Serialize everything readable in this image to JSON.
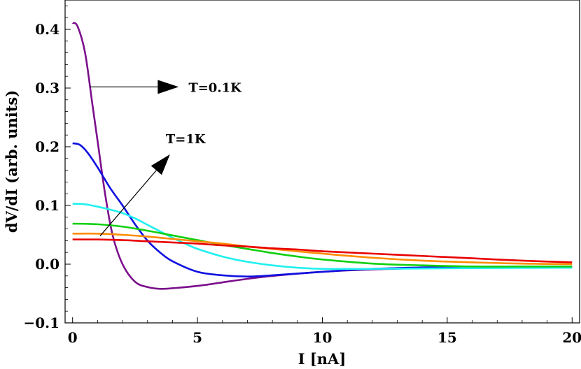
{
  "chart_data": {
    "type": "line",
    "xlabel": "I [nA]",
    "ylabel": "dV/dI (arb. units)",
    "xlim": [
      -0.3,
      20.3
    ],
    "ylim": [
      -0.1,
      0.45
    ],
    "x_ticks": [
      0,
      5,
      10,
      15,
      20
    ],
    "x_tick_labels": [
      "0",
      "5",
      "10",
      "15",
      "20"
    ],
    "y_ticks": [
      -0.1,
      0.0,
      0.1,
      0.2,
      0.3,
      0.4
    ],
    "y_tick_labels": [
      "−0.1",
      "0.0",
      "0.1",
      "0.2",
      "0.3",
      "0.4"
    ],
    "grid": false,
    "series": [
      {
        "color": "#7b0f8c",
        "x": [
          0,
          0.2,
          0.5,
          0.8,
          1.0,
          1.3,
          1.6,
          2.0,
          2.5,
          3.0,
          3.5,
          4.0,
          5.0,
          6.0,
          7.0,
          8.0,
          10.0,
          12.0,
          15.0,
          20.0
        ],
        "y": [
          0.411,
          0.405,
          0.36,
          0.27,
          0.21,
          0.12,
          0.05,
          0.0,
          -0.03,
          -0.039,
          -0.042,
          -0.041,
          -0.037,
          -0.031,
          -0.025,
          -0.02,
          -0.013,
          -0.009,
          -0.006,
          -0.005
        ]
      },
      {
        "color": "#1010e0",
        "x": [
          0,
          0.3,
          0.6,
          1.0,
          1.5,
          2.0,
          2.5,
          3.0,
          3.5,
          4.0,
          5.0,
          6.0,
          7.0,
          8.0,
          10.0,
          12.0,
          15.0,
          20.0
        ],
        "y": [
          0.206,
          0.203,
          0.19,
          0.165,
          0.13,
          0.1,
          0.068,
          0.04,
          0.02,
          0.005,
          -0.013,
          -0.019,
          -0.021,
          -0.019,
          -0.013,
          -0.008,
          -0.005,
          -0.005
        ]
      },
      {
        "color": "#20f0f0",
        "x": [
          0,
          0.5,
          1.0,
          1.5,
          2.0,
          2.5,
          3.0,
          3.5,
          4.0,
          4.5,
          5.0,
          6.0,
          7.0,
          8.0,
          9.0,
          10.0,
          12.0,
          15.0,
          20.0
        ],
        "y": [
          0.103,
          0.102,
          0.098,
          0.093,
          0.087,
          0.078,
          0.067,
          0.056,
          0.045,
          0.035,
          0.026,
          0.013,
          0.004,
          -0.002,
          -0.006,
          -0.008,
          -0.008,
          -0.007,
          -0.006
        ]
      },
      {
        "color": "#10d010",
        "x": [
          0,
          1,
          2,
          3,
          4,
          5,
          6,
          7,
          8,
          9,
          10,
          12,
          14,
          16,
          18,
          20
        ],
        "y": [
          0.069,
          0.068,
          0.064,
          0.057,
          0.049,
          0.041,
          0.033,
          0.026,
          0.019,
          0.013,
          0.008,
          0.001,
          -0.002,
          -0.004,
          -0.004,
          -0.004
        ]
      },
      {
        "color": "#ff8c00",
        "x": [
          0,
          1,
          2,
          3,
          4,
          5,
          6,
          7,
          8,
          9,
          10,
          12,
          14,
          16,
          18,
          20
        ],
        "y": [
          0.052,
          0.052,
          0.05,
          0.047,
          0.043,
          0.039,
          0.035,
          0.03,
          0.026,
          0.022,
          0.018,
          0.011,
          0.006,
          0.003,
          0.001,
          0.0
        ]
      },
      {
        "color": "#e80000",
        "x": [
          0,
          1,
          2,
          3,
          4,
          5,
          6,
          7,
          8,
          9,
          10,
          12,
          14,
          16,
          18,
          20
        ],
        "y": [
          0.042,
          0.042,
          0.041,
          0.039,
          0.037,
          0.035,
          0.032,
          0.03,
          0.027,
          0.025,
          0.022,
          0.018,
          0.014,
          0.01,
          0.006,
          0.003
        ]
      }
    ],
    "annotations": [
      {
        "text": "T=0.1K",
        "arrow_from": [
          0.7,
          0.302
        ],
        "arrow_to": [
          4.25,
          0.302
        ]
      },
      {
        "text": "T=1K",
        "arrow_from": [
          1.1,
          0.048
        ],
        "arrow_to": [
          3.9,
          0.187
        ]
      }
    ]
  }
}
